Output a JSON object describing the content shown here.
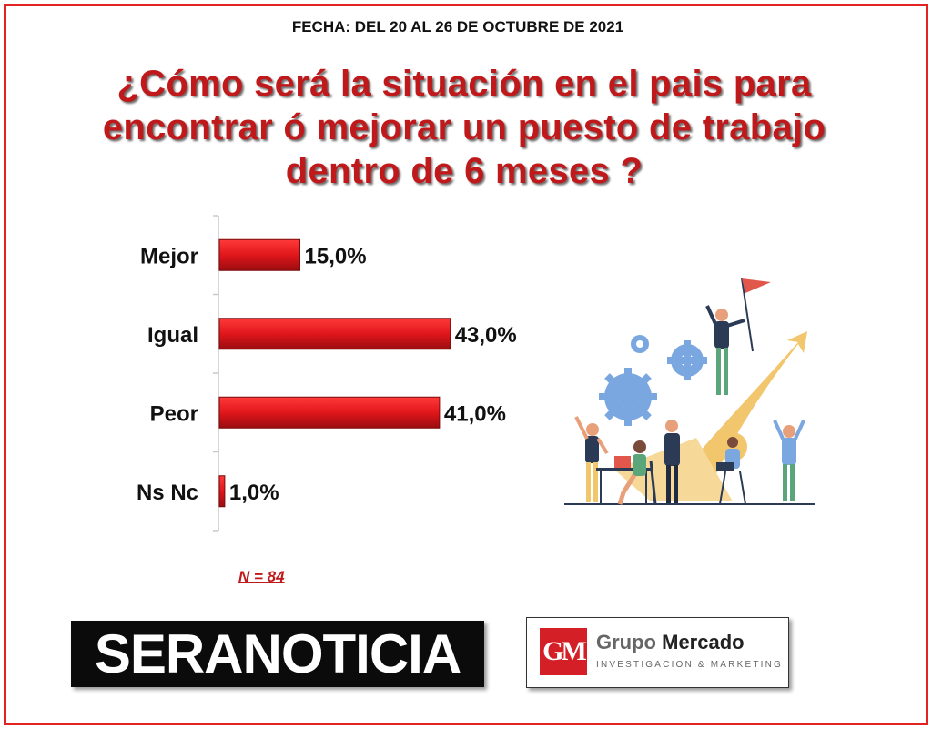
{
  "header": {
    "date_text": "FECHA: DEL 20 AL 26 DE OCTUBRE DE 2021",
    "question_lines": [
      "¿Cómo será la situación en el pais para",
      "encontrar ó mejorar un puesto de trabajo",
      "dentro de 6 meses ?"
    ]
  },
  "chart_data": {
    "type": "bar",
    "orientation": "horizontal",
    "categories": [
      "Mejor",
      "Igual",
      "Peor",
      "Ns Nc"
    ],
    "values": [
      15.0,
      43.0,
      41.0,
      1.0
    ],
    "value_labels": [
      "15,0%",
      "43,0%",
      "41,0%",
      "1,0%"
    ],
    "xlim": [
      0,
      100
    ],
    "grid": false,
    "bar_color": "#e0161b"
  },
  "sample": {
    "text": "N = 84"
  },
  "logos": {
    "seranoticia": "SERANOTICIA",
    "grupo_mercado": {
      "mark": "GM",
      "name_part1": "Grupo",
      "name_part2": "Mercado",
      "tagline": "INVESTIGACION & MARKETING"
    }
  },
  "colors": {
    "frame": "#e32222",
    "title": "#c0191b",
    "brand_red": "#d51f26"
  },
  "illustration": {
    "icon": "team-success-growth-illustration"
  }
}
